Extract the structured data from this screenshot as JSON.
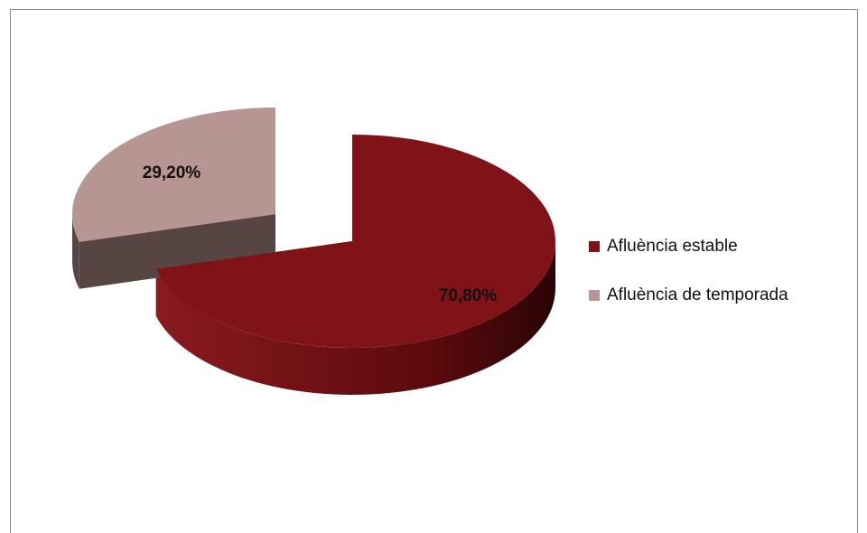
{
  "chart_data": {
    "type": "pie",
    "style": "3d-exploded",
    "title": "",
    "categories": [
      "Afluència estable",
      "Afluència de temporada"
    ],
    "values": [
      70.8,
      29.2
    ],
    "data_labels": [
      "70,80%",
      "29,20%"
    ],
    "colors": {
      "Afluència estable": "#7f1317",
      "Afluència de temporada": "#b69592"
    },
    "side_colors": {
      "Afluència estable": "#5a0a0d",
      "Afluència de temporada": "#574543"
    },
    "legend_position": "right",
    "start_angle_deg": 0
  }
}
